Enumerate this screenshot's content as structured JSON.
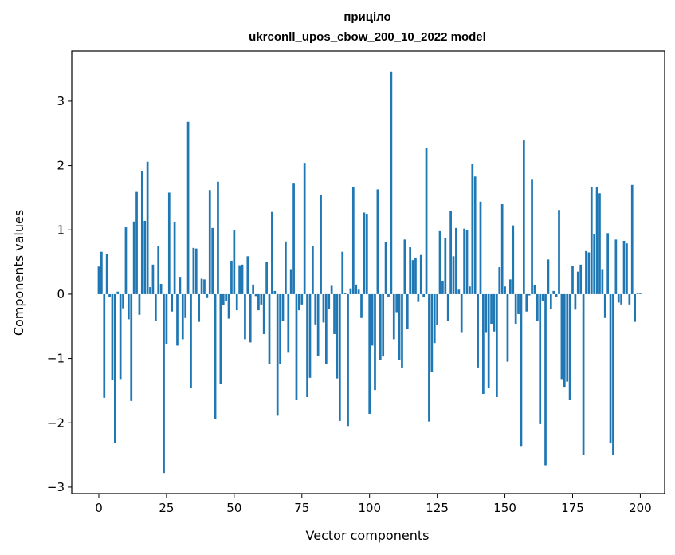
{
  "chart_data": {
    "type": "bar",
    "title_line1": "приціло",
    "title_line2": "ukrconll_upos_cbow_200_10_2022 model",
    "xlabel": "Vector components",
    "ylabel": "Components values",
    "xlim": [
      -10,
      209
    ],
    "ylim": [
      -3.1,
      3.78
    ],
    "xticks": [
      0,
      25,
      50,
      75,
      100,
      125,
      150,
      175,
      200
    ],
    "yticks": [
      -3,
      -2,
      -1,
      0,
      1,
      2,
      3
    ],
    "color": "#1f77b4",
    "values": [
      0.43,
      0.66,
      -1.61,
      0.63,
      -0.04,
      -1.33,
      -2.31,
      0.04,
      -1.32,
      -0.22,
      1.04,
      -0.39,
      -1.66,
      1.13,
      1.59,
      -0.32,
      1.91,
      1.14,
      2.06,
      0.11,
      0.46,
      -0.41,
      0.75,
      0.16,
      -2.78,
      -0.78,
      1.58,
      -0.27,
      1.12,
      -0.8,
      0.27,
      -0.7,
      -0.37,
      2.68,
      -1.46,
      0.72,
      0.71,
      -0.43,
      0.24,
      0.23,
      -0.06,
      1.62,
      1.03,
      -1.94,
      1.75,
      -1.39,
      -0.17,
      -0.1,
      -0.38,
      0.52,
      0.99,
      -0.25,
      0.45,
      0.46,
      -0.7,
      0.59,
      -0.75,
      0.15,
      -0.03,
      -0.25,
      -0.16,
      -0.62,
      0.5,
      -1.08,
      1.28,
      0.05,
      -1.89,
      -1.08,
      -0.42,
      0.82,
      -0.91,
      0.39,
      1.72,
      -1.65,
      -0.25,
      -0.16,
      2.03,
      -1.6,
      -1.3,
      0.75,
      -0.47,
      -0.96,
      1.54,
      -0.44,
      -1.08,
      -0.23,
      0.13,
      -0.62,
      -1.31,
      -1.97,
      0.66,
      0.02,
      -2.05,
      0.09,
      1.67,
      0.15,
      0.07,
      -0.37,
      1.27,
      1.25,
      -1.86,
      -0.8,
      -1.49,
      1.63,
      -1.02,
      -0.97,
      0.81,
      -0.04,
      3.46,
      -0.7,
      -0.28,
      -1.03,
      -1.14,
      0.85,
      -0.54,
      0.73,
      0.53,
      0.57,
      -0.12,
      0.61,
      -0.05,
      2.27,
      -1.98,
      -1.21,
      -0.76,
      -0.48,
      0.98,
      0.21,
      0.87,
      -0.41,
      1.29,
      0.59,
      1.03,
      0.07,
      -0.59,
      1.02,
      1.0,
      0.12,
      2.02,
      1.83,
      -1.14,
      1.44,
      -1.55,
      -0.59,
      -1.46,
      -0.46,
      -0.58,
      -1.6,
      0.42,
      1.4,
      0.12,
      -1.05,
      0.23,
      1.07,
      -0.46,
      -0.31,
      -2.36,
      2.39,
      -0.27,
      -0.02,
      1.78,
      0.14,
      -0.41,
      -2.02,
      -0.1,
      -2.66,
      0.54,
      -0.23,
      0.05,
      -0.04,
      1.31,
      -1.32,
      -1.44,
      -1.36,
      -1.64,
      0.44,
      -0.24,
      0.35,
      0.46,
      -2.5,
      0.67,
      0.65,
      1.66,
      0.94,
      1.66,
      1.57,
      0.39,
      -0.37,
      0.95,
      -2.32,
      -2.5,
      0.85,
      -0.13,
      -0.16,
      0.83,
      0.79,
      -0.16,
      1.7,
      -0.43,
      0.01,
      0.01
    ]
  }
}
